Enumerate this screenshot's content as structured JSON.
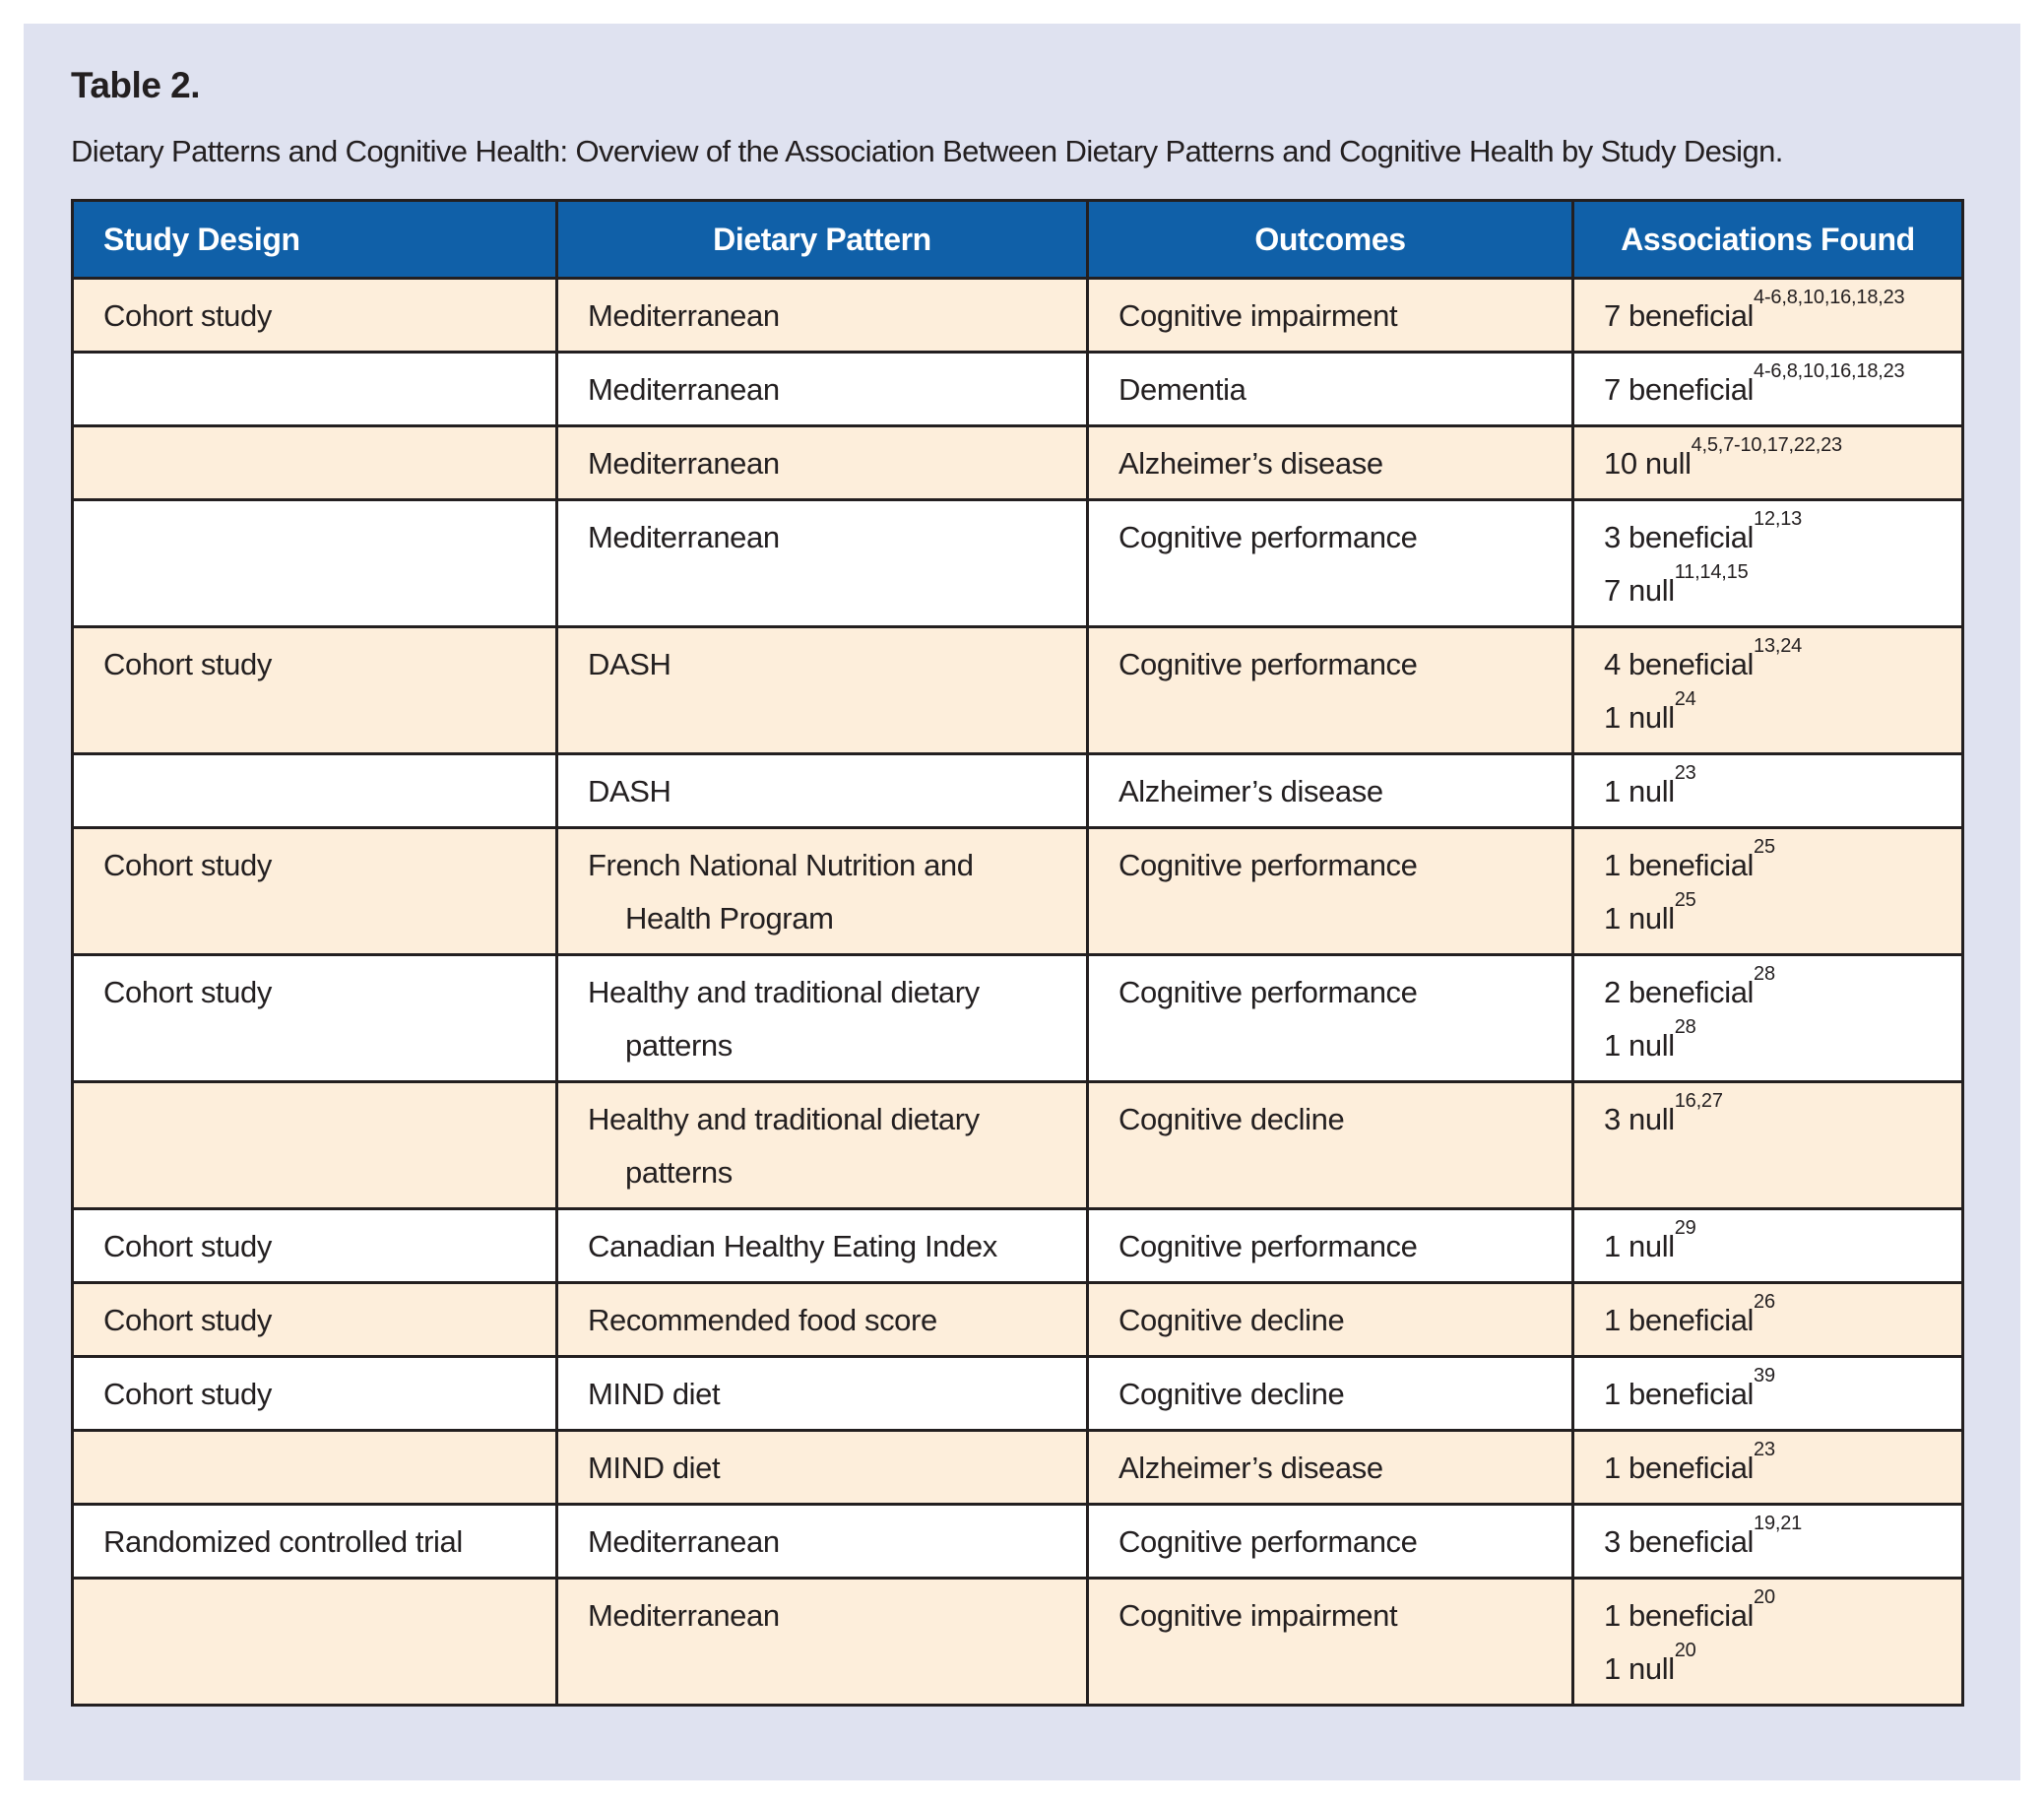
{
  "title": "Table 2.",
  "caption": "Dietary Patterns and Cognitive Health: Overview of the Association Between Dietary Patterns and Cognitive Health by Study Design.",
  "colors": {
    "panel_bg": "#dfe2f0",
    "header_bg": "#1060a8",
    "header_text": "#ffffff",
    "row_peach": "#fdeedb",
    "row_white": "#ffffff",
    "border": "#231f20",
    "text": "#231f20"
  },
  "table": {
    "columns": [
      "Study Design",
      "Dietary Pattern",
      "Outcomes",
      "Associations Found"
    ],
    "rows": [
      {
        "study_design": "Cohort study",
        "dietary_pattern": [
          "Mediterranean"
        ],
        "outcomes": "Cognitive impairment",
        "associations": [
          {
            "text": "7 beneficial",
            "sup": "4-6,8,10,16,18,23"
          }
        ]
      },
      {
        "study_design": "",
        "dietary_pattern": [
          "Mediterranean"
        ],
        "outcomes": "Dementia",
        "associations": [
          {
            "text": "7 beneficial",
            "sup": "4-6,8,10,16,18,23"
          }
        ]
      },
      {
        "study_design": "",
        "dietary_pattern": [
          "Mediterranean"
        ],
        "outcomes": "Alzheimer’s disease",
        "associations": [
          {
            "text": "10 null",
            "sup": "4,5,7-10,17,22,23"
          }
        ]
      },
      {
        "study_design": "",
        "dietary_pattern": [
          "Mediterranean"
        ],
        "outcomes": "Cognitive performance",
        "associations": [
          {
            "text": "3 beneficial",
            "sup": "12,13"
          },
          {
            "text": "7 null",
            "sup": "11,14,15"
          }
        ]
      },
      {
        "study_design": "Cohort study",
        "dietary_pattern": [
          "DASH"
        ],
        "outcomes": "Cognitive performance",
        "associations": [
          {
            "text": "4 beneficial",
            "sup": "13,24"
          },
          {
            "text": "1 null",
            "sup": "24"
          }
        ]
      },
      {
        "study_design": "",
        "dietary_pattern": [
          "DASH"
        ],
        "outcomes": "Alzheimer’s disease",
        "associations": [
          {
            "text": "1 null",
            "sup": "23"
          }
        ]
      },
      {
        "study_design": "Cohort study",
        "dietary_pattern": [
          "French National Nutrition and",
          "Health Program"
        ],
        "outcomes": "Cognitive performance",
        "associations": [
          {
            "text": "1 beneficial",
            "sup": "25"
          },
          {
            "text": "1 null",
            "sup": "25"
          }
        ]
      },
      {
        "study_design": "Cohort study",
        "dietary_pattern": [
          "Healthy and traditional dietary",
          "patterns"
        ],
        "outcomes": "Cognitive performance",
        "associations": [
          {
            "text": "2 beneficial",
            "sup": "28"
          },
          {
            "text": "1 null",
            "sup": "28"
          }
        ]
      },
      {
        "study_design": "",
        "dietary_pattern": [
          "Healthy and traditional dietary",
          "patterns"
        ],
        "outcomes": "Cognitive decline",
        "associations": [
          {
            "text": "3 null",
            "sup": "16,27"
          }
        ]
      },
      {
        "study_design": "Cohort study",
        "dietary_pattern": [
          "Canadian Healthy Eating Index"
        ],
        "outcomes": "Cognitive performance",
        "associations": [
          {
            "text": "1 null",
            "sup": "29"
          }
        ]
      },
      {
        "study_design": "Cohort study",
        "dietary_pattern": [
          "Recommended food score"
        ],
        "outcomes": "Cognitive decline",
        "associations": [
          {
            "text": "1 beneficial",
            "sup": "26"
          }
        ]
      },
      {
        "study_design": "Cohort study",
        "dietary_pattern": [
          "MIND diet"
        ],
        "outcomes": "Cognitive decline",
        "associations": [
          {
            "text": "1 beneficial",
            "sup": "39"
          }
        ]
      },
      {
        "study_design": "",
        "dietary_pattern": [
          "MIND diet"
        ],
        "outcomes": "Alzheimer’s disease",
        "associations": [
          {
            "text": "1 beneficial",
            "sup": "23"
          }
        ]
      },
      {
        "study_design": "Randomized controlled trial",
        "dietary_pattern": [
          "Mediterranean"
        ],
        "outcomes": "Cognitive performance",
        "associations": [
          {
            "text": "3 beneficial",
            "sup": "19,21"
          }
        ]
      },
      {
        "study_design": "",
        "dietary_pattern": [
          "Mediterranean"
        ],
        "outcomes": "Cognitive impairment",
        "associations": [
          {
            "text": "1 beneficial",
            "sup": "20"
          },
          {
            "text": "1 null",
            "sup": "20"
          }
        ]
      }
    ]
  }
}
